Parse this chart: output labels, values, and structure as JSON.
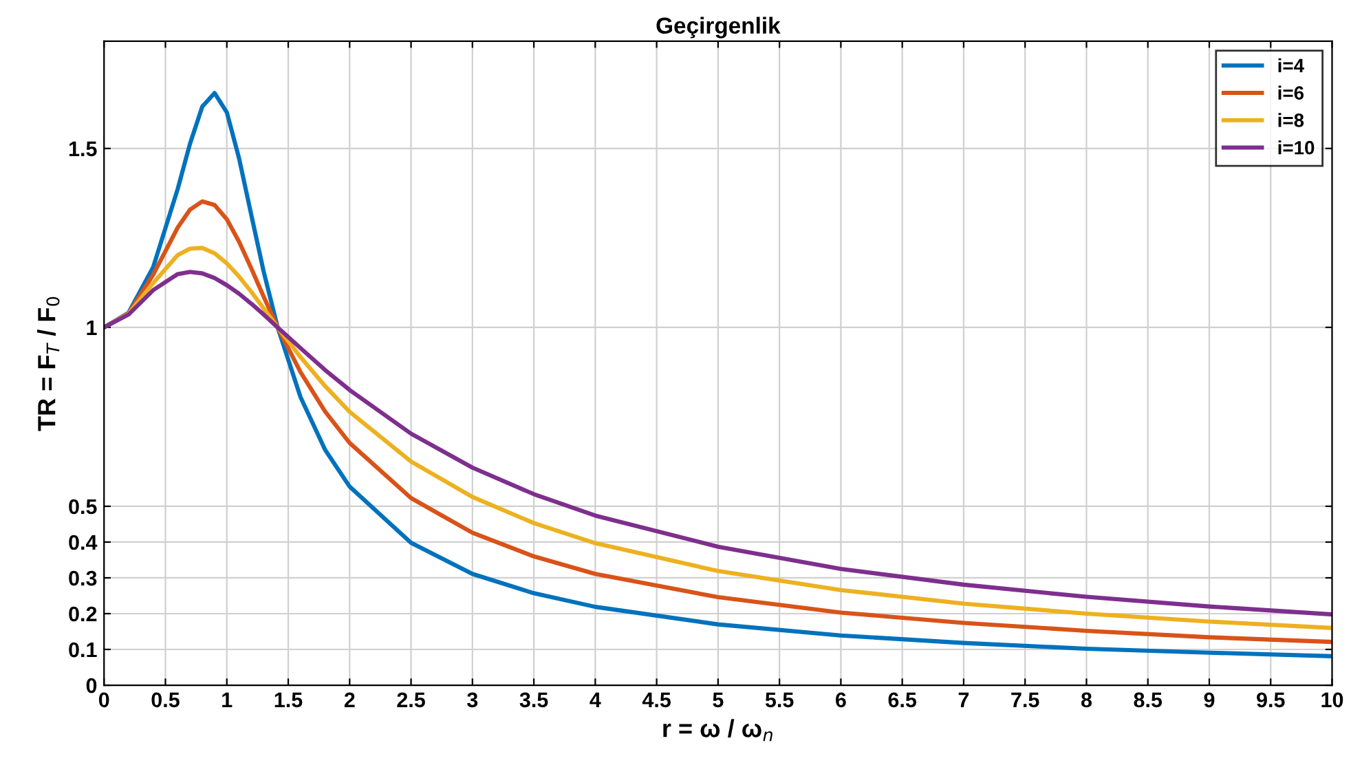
{
  "chart_data": {
    "type": "line",
    "title": "Geçirgenlik",
    "xlabel": "r = ω / ω$_{n}$",
    "ylabel": "TR = F$_{T}$ / F$_{0}$",
    "x": [
      0,
      0.2,
      0.4,
      0.6,
      0.7,
      0.8,
      0.9,
      1.0,
      1.1,
      1.2,
      1.3,
      1.414,
      1.6,
      1.8,
      2,
      2.5,
      3,
      3.5,
      4,
      5,
      6,
      7,
      8,
      9,
      10
    ],
    "series": [
      {
        "name": "i=4",
        "color": "#0072bd",
        "values": [
          1,
          1.041,
          1.168,
          1.387,
          1.513,
          1.617,
          1.655,
          1.601,
          1.472,
          1.313,
          1.156,
          1,
          0.805,
          0.658,
          0.555,
          0.398,
          0.311,
          0.257,
          0.219,
          0.17,
          0.139,
          0.118,
          0.102,
          0.091,
          0.081
        ]
      },
      {
        "name": "i=6",
        "color": "#d95319",
        "values": [
          1,
          1.039,
          1.147,
          1.279,
          1.329,
          1.352,
          1.342,
          1.302,
          1.239,
          1.164,
          1.086,
          1,
          0.875,
          0.765,
          0.677,
          0.523,
          0.426,
          0.36,
          0.311,
          0.246,
          0.203,
          0.174,
          0.152,
          0.134,
          0.121
        ]
      },
      {
        "name": "i=8",
        "color": "#edb120",
        "values": [
          1,
          1.038,
          1.124,
          1.202,
          1.22,
          1.222,
          1.207,
          1.179,
          1.142,
          1.099,
          1.053,
          1,
          0.917,
          0.836,
          0.764,
          0.625,
          0.526,
          0.453,
          0.397,
          0.319,
          0.266,
          0.228,
          0.2,
          0.178,
          0.16
        ]
      },
      {
        "name": "i=10",
        "color": "#7e2f8e",
        "values": [
          1,
          1.036,
          1.104,
          1.149,
          1.155,
          1.151,
          1.138,
          1.118,
          1.094,
          1.066,
          1.036,
          1,
          0.942,
          0.881,
          0.825,
          0.703,
          0.608,
          0.534,
          0.474,
          0.387,
          0.325,
          0.281,
          0.247,
          0.22,
          0.198
        ]
      }
    ],
    "xlim": [
      0,
      10
    ],
    "ylim": [
      0,
      1.8
    ],
    "xticks": [
      0,
      0.5,
      1,
      1.5,
      2,
      2.5,
      3,
      3.5,
      4,
      4.5,
      5,
      5.5,
      6,
      6.5,
      7,
      7.5,
      8,
      8.5,
      9,
      9.5,
      10
    ],
    "yticks": [
      0,
      0.1,
      0.2,
      0.3,
      0.4,
      0.5,
      1,
      1.5
    ],
    "grid": true,
    "legend": "top right",
    "marker": "none",
    "line_style": "solid"
  }
}
